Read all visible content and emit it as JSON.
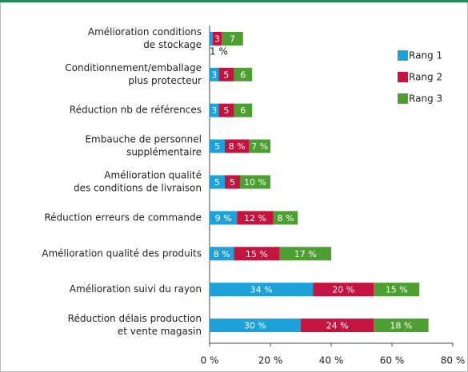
{
  "chart_data": {
    "type": "stacked-barh",
    "categories": [
      [
        "Amélioration conditions",
        "de stockage"
      ],
      [
        "Conditionnement/emballage",
        "plus protecteur"
      ],
      [
        "Réduction nb de références"
      ],
      [
        "Embauche de personnel",
        "supplémentaire"
      ],
      [
        "Amélioration qualité",
        "des conditions de livraison"
      ],
      [
        "Réduction erreurs de commande"
      ],
      [
        "Amélioration qualité des produits"
      ],
      [
        "Amélioration suivi du rayon"
      ],
      [
        "Réduction délais production",
        "et vente magasin"
      ]
    ],
    "series": [
      {
        "name": "Rang 1",
        "color": "#1ea0d8",
        "values": [
          1,
          3,
          3,
          5,
          5,
          9,
          8,
          34,
          30
        ],
        "value_labels": [
          "1 %",
          "3",
          "3",
          "5",
          "5",
          "9 %",
          "8 %",
          "34 %",
          "30 %"
        ]
      },
      {
        "name": "Rang 2",
        "color": "#c2143f",
        "values": [
          3,
          5,
          5,
          8,
          5,
          12,
          15,
          20,
          24
        ],
        "value_labels": [
          "3",
          "5",
          "5",
          "8 %",
          "5",
          "12 %",
          "15 %",
          "20 %",
          "24 %"
        ]
      },
      {
        "name": "Rang 3",
        "color": "#4c9f30",
        "values": [
          7,
          6,
          6,
          7,
          10,
          8,
          17,
          15,
          18
        ],
        "value_labels": [
          "7",
          "6",
          "6",
          "7 %",
          "10 %",
          "8 %",
          "17 %",
          "15 %",
          "18 %"
        ]
      }
    ],
    "xlim": [
      0,
      80
    ],
    "xticks": [
      {
        "value": 0,
        "label": "0 %"
      },
      {
        "value": 20,
        "label": "20 %"
      },
      {
        "value": 40,
        "label": "40 %"
      },
      {
        "value": 60,
        "label": "60 %"
      },
      {
        "value": 80,
        "label": "80 %"
      }
    ],
    "legend": "upper right"
  }
}
